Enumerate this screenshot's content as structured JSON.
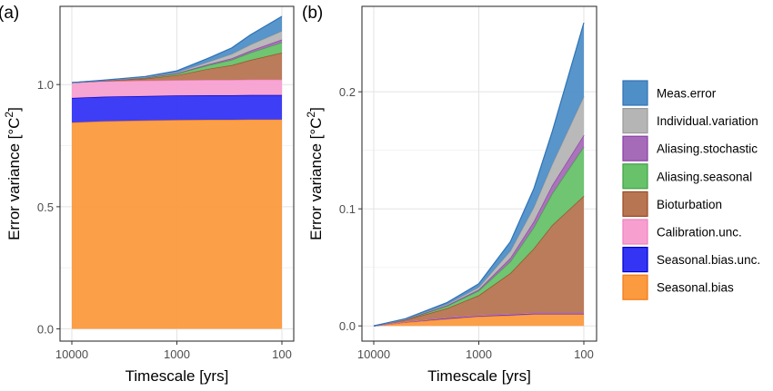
{
  "panels": [
    {
      "label": "(a)"
    },
    {
      "label": "(b)"
    }
  ],
  "chart_data": [
    {
      "type": "area",
      "panel": "(a)",
      "stacked": true,
      "xlabel": "Timescale [yrs]",
      "ylabel": "Error variance [°C²]",
      "ylabel_parts": {
        "main": "Error variance [°C",
        "sup": "2",
        "end": "]"
      },
      "x_scale": "log-reversed",
      "x": [
        10000,
        5000,
        2000,
        1000,
        500,
        300,
        200,
        100
      ],
      "xticks": [
        10000,
        1000,
        100
      ],
      "xtick_labels": [
        "10000",
        "1000",
        "100"
      ],
      "yticks": [
        0.0,
        0.5,
        1.0
      ],
      "ytick_labels": [
        "0.0",
        "0.5",
        "1.0"
      ],
      "ylim": [
        -0.05,
        1.32
      ],
      "grid": true,
      "series": [
        {
          "name": "Seasonal.bias",
          "values": [
            0.845,
            0.85,
            0.853,
            0.855,
            0.856,
            0.856,
            0.857,
            0.857
          ]
        },
        {
          "name": "Seasonal.bias.unc.",
          "values": [
            0.1,
            0.1,
            0.1,
            0.1,
            0.1,
            0.1,
            0.1,
            0.1
          ]
        },
        {
          "name": "Calibration.unc.",
          "values": [
            0.063,
            0.063,
            0.063,
            0.063,
            0.063,
            0.063,
            0.063,
            0.063
          ]
        },
        {
          "name": "Bioturbation",
          "values": [
            0.0,
            0.002,
            0.008,
            0.02,
            0.045,
            0.06,
            0.08,
            0.11
          ]
        },
        {
          "name": "Aliasing.seasonal",
          "values": [
            0.0,
            0.001,
            0.003,
            0.006,
            0.015,
            0.022,
            0.03,
            0.042
          ]
        },
        {
          "name": "Aliasing.stochastic",
          "values": [
            0.0,
            0.0,
            0.001,
            0.002,
            0.004,
            0.006,
            0.008,
            0.012
          ]
        },
        {
          "name": "Individual.variation",
          "values": [
            0.0,
            0.001,
            0.002,
            0.004,
            0.01,
            0.018,
            0.025,
            0.035
          ]
        },
        {
          "name": "Meas.error",
          "values": [
            0.0,
            0.001,
            0.003,
            0.006,
            0.015,
            0.025,
            0.04,
            0.06
          ]
        }
      ]
    },
    {
      "type": "area",
      "panel": "(b)",
      "stacked": true,
      "xlabel": "Timescale [yrs]",
      "ylabel": "Error variance [°C²]",
      "ylabel_parts": {
        "main": "Error variance [°C",
        "sup": "2",
        "end": "]"
      },
      "x_scale": "log-reversed",
      "x": [
        10000,
        5000,
        2000,
        1000,
        500,
        300,
        200,
        100
      ],
      "xticks": [
        10000,
        1000,
        100
      ],
      "xtick_labels": [
        "10000",
        "1000",
        "100"
      ],
      "yticks": [
        0.0,
        0.1,
        0.2
      ],
      "ytick_labels": [
        "0.0",
        "0.1",
        "0.2"
      ],
      "ylim": [
        -0.013,
        0.273
      ],
      "grid": true,
      "series": [
        {
          "name": "Seasonal.bias",
          "values": [
            0.0,
            0.003,
            0.006,
            0.008,
            0.009,
            0.01,
            0.01,
            0.01
          ]
        },
        {
          "name": "Seasonal.bias.unc.",
          "values": [
            0.0,
            0.0005,
            0.001,
            0.001,
            0.001,
            0.001,
            0.001,
            0.001
          ]
        },
        {
          "name": "Calibration.unc.",
          "values": [
            0.0,
            0.0,
            0.0,
            0.0,
            0.0,
            0.0,
            0.0,
            0.0
          ]
        },
        {
          "name": "Bioturbation",
          "values": [
            0.0,
            0.0015,
            0.008,
            0.017,
            0.035,
            0.055,
            0.075,
            0.1
          ]
        },
        {
          "name": "Aliasing.seasonal",
          "values": [
            0.0,
            0.0003,
            0.002,
            0.004,
            0.01,
            0.018,
            0.027,
            0.042
          ]
        },
        {
          "name": "Aliasing.stochastic",
          "values": [
            0.0,
            0.0001,
            0.0005,
            0.001,
            0.003,
            0.005,
            0.007,
            0.01
          ]
        },
        {
          "name": "Individual.variation",
          "values": [
            0.0,
            0.0002,
            0.001,
            0.002,
            0.006,
            0.012,
            0.018,
            0.033
          ]
        },
        {
          "name": "Meas.error",
          "values": [
            0.0,
            0.0005,
            0.0015,
            0.003,
            0.008,
            0.016,
            0.028,
            0.063
          ]
        }
      ]
    }
  ],
  "legend": {
    "placement": "right",
    "items": [
      {
        "name": "Meas.error",
        "fill": "#4f8fc8",
        "stroke": "#2f73b6"
      },
      {
        "name": "Individual.variation",
        "fill": "#b5b5b5",
        "stroke": "#9a9a9a"
      },
      {
        "name": "Aliasing.stochastic",
        "fill": "#a66bb8",
        "stroke": "#8a3fa3"
      },
      {
        "name": "Aliasing.seasonal",
        "fill": "#67c26a",
        "stroke": "#3ea043"
      },
      {
        "name": "Bioturbation",
        "fill": "#b77552",
        "stroke": "#9c4a25"
      },
      {
        "name": "Calibration.unc.",
        "fill": "#f7a0d0",
        "stroke": "#ee80c0"
      },
      {
        "name": "Seasonal.bias.unc.",
        "fill": "#3434f5",
        "stroke": "#0000c8"
      },
      {
        "name": "Seasonal.bias",
        "fill": "#fb9a3e",
        "stroke": "#f07a1a"
      }
    ]
  }
}
